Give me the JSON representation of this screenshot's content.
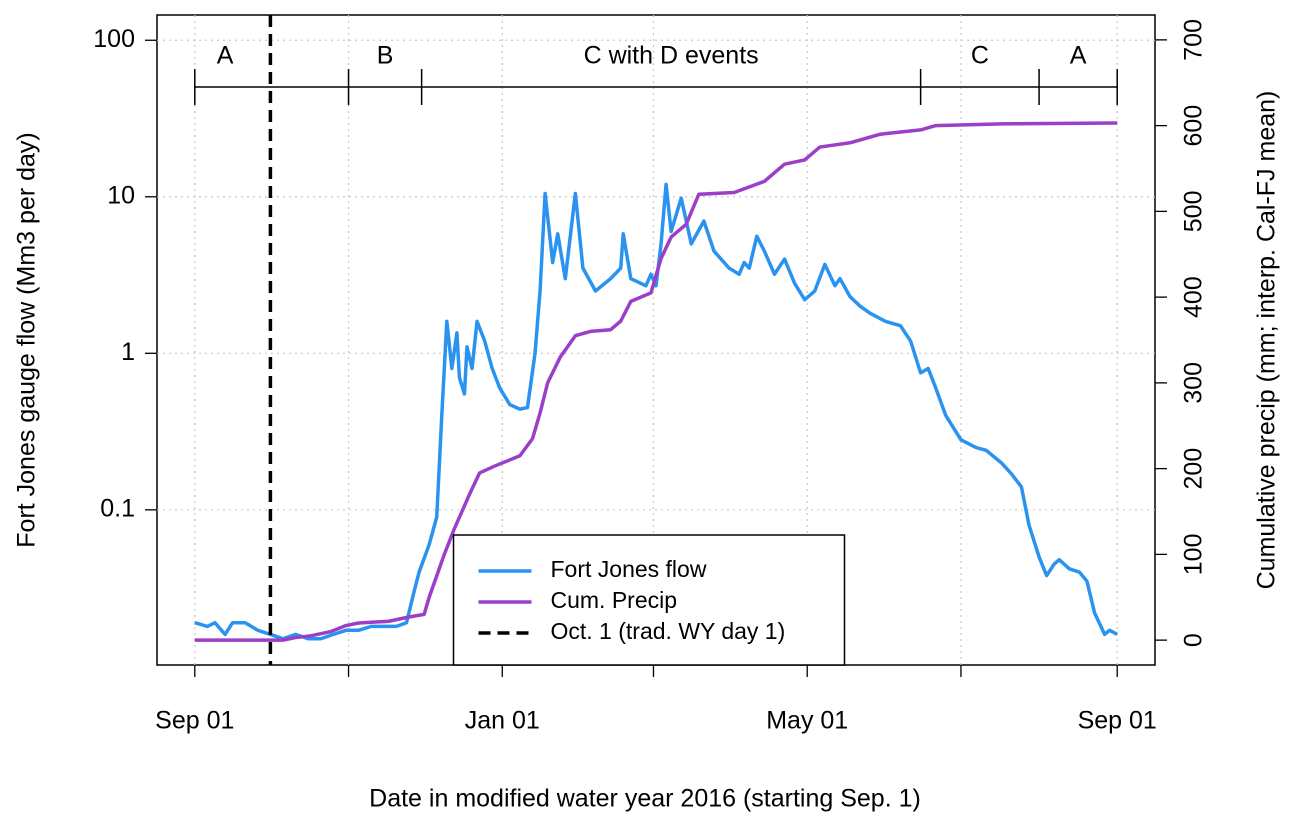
{
  "chart_data": {
    "type": "line",
    "xlabel": "Date in modified water year 2016 (starting Sep. 1)",
    "ylabel": "Fort Jones gauge flow (Mm3 per day)",
    "y2label": "Cumulative precip (mm; interp. Cal-FJ mean)",
    "xlim": [
      -15,
      381
    ],
    "xticks": [
      {
        "value": 0,
        "label": "Sep 01"
      },
      {
        "value": 61,
        "label": null
      },
      {
        "value": 122,
        "label": "Jan 01"
      },
      {
        "value": 182,
        "label": null
      },
      {
        "value": 243,
        "label": "May 01"
      },
      {
        "value": 304,
        "label": null
      },
      {
        "value": 366,
        "label": "Sep 01"
      }
    ],
    "ylog": true,
    "ylim": [
      0.0102,
      145
    ],
    "yticks": [
      0.1,
      1,
      10,
      100
    ],
    "y2lim": [
      -29,
      729
    ],
    "y2ticks": [
      0,
      100,
      200,
      300,
      400,
      500,
      600,
      700
    ],
    "grid": true,
    "legend": "bottom",
    "series": [
      {
        "name": "Fort Jones flow",
        "color": "#2a93f0",
        "x": [
          0,
          5,
          8,
          12,
          15,
          20,
          25,
          30,
          35,
          40,
          45,
          50,
          55,
          60,
          65,
          70,
          75,
          80,
          84,
          87,
          89,
          93,
          96,
          98,
          100,
          102,
          104,
          105,
          107,
          108,
          110,
          112,
          115,
          118,
          121,
          125,
          129,
          132,
          135,
          137,
          139,
          142,
          144,
          147,
          151,
          154,
          159,
          165,
          169,
          170,
          173,
          179,
          181,
          183,
          185,
          187,
          189,
          193,
          197,
          202,
          206,
          212,
          216,
          218,
          220,
          223,
          226,
          230,
          234,
          238,
          242,
          246,
          250,
          254,
          256,
          260,
          264,
          268,
          274,
          280,
          284,
          288,
          291,
          294,
          298,
          304,
          310,
          314,
          320,
          324,
          328,
          331,
          335,
          338,
          341,
          343,
          347,
          351,
          354,
          357,
          361,
          363,
          366
        ],
        "values": [
          0.019,
          0.018,
          0.019,
          0.016,
          0.019,
          0.019,
          0.017,
          0.016,
          0.015,
          0.016,
          0.015,
          0.015,
          0.016,
          0.017,
          0.017,
          0.018,
          0.018,
          0.018,
          0.019,
          0.03,
          0.04,
          0.06,
          0.09,
          0.4,
          1.6,
          0.8,
          1.35,
          0.7,
          0.55,
          1.1,
          0.8,
          1.6,
          1.2,
          0.8,
          0.6,
          0.47,
          0.44,
          0.45,
          1.0,
          2.5,
          10.5,
          3.8,
          5.8,
          3.0,
          10.5,
          3.5,
          2.5,
          3.0,
          3.5,
          5.8,
          3.0,
          2.7,
          3.2,
          2.7,
          5,
          12,
          6,
          9.8,
          5,
          7,
          4.5,
          3.5,
          3.2,
          3.8,
          3.5,
          5.6,
          4.5,
          3.2,
          4.0,
          2.8,
          2.2,
          2.5,
          3.7,
          2.7,
          3.0,
          2.3,
          2.0,
          1.8,
          1.6,
          1.5,
          1.2,
          0.75,
          0.8,
          0.6,
          0.4,
          0.28,
          0.25,
          0.24,
          0.2,
          0.17,
          0.14,
          0.08,
          0.05,
          0.038,
          0.045,
          0.048,
          0.042,
          0.04,
          0.035,
          0.022,
          0.016,
          0.017,
          0.016
        ]
      },
      {
        "name": "Cum. Precip",
        "color": "#9b3fc9",
        "axis": "y2",
        "x": [
          0,
          35,
          40,
          46,
          54,
          60,
          65,
          77,
          85,
          91,
          93,
          99,
          103,
          109,
          113,
          119,
          129,
          134,
          137,
          140,
          145,
          151,
          157,
          165,
          169,
          173,
          181,
          185,
          189,
          195,
          200,
          214,
          226,
          234,
          242,
          248,
          260,
          272,
          288,
          294,
          320,
          366
        ],
        "values": [
          0,
          0,
          3,
          5,
          10,
          17,
          20,
          22,
          27,
          30,
          50,
          100,
          130,
          170,
          195,
          203,
          215,
          235,
          265,
          300,
          330,
          355,
          360,
          362,
          372,
          395,
          405,
          445,
          470,
          485,
          520,
          522,
          535,
          555,
          560,
          575,
          580,
          590,
          595,
          600,
          602,
          603
        ]
      }
    ],
    "vlines": [
      {
        "name": "Oct. 1 (trad. WY day 1)",
        "x": 30,
        "color": "#000000"
      }
    ],
    "periods": [
      {
        "label": "A",
        "start": 0,
        "end": 61,
        "label_x": 12
      },
      {
        "label": "B",
        "start": 61,
        "end": 90
      },
      {
        "label": "C with D events",
        "start": 90,
        "end": 288
      },
      {
        "label": "C",
        "start": 288,
        "end": 335
      },
      {
        "label": "A",
        "start": 335,
        "end": 366
      }
    ]
  }
}
